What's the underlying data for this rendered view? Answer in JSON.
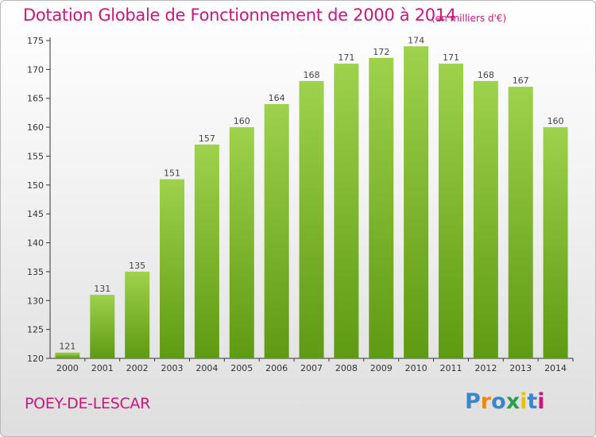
{
  "header": {
    "title": "Dotation Globale de Fonctionnement de 2000 à 2014",
    "unit": "(en milliers d'€)"
  },
  "footer": {
    "commune": "POEY-DE-LESCAR",
    "brand": "Proxiti"
  },
  "colors": {
    "title": "#c8167a",
    "bar_top": "#9ed24a",
    "bar_bottom": "#5e9a12",
    "axis": "#333333"
  },
  "chart_data": {
    "type": "bar",
    "categories": [
      "2000",
      "2001",
      "2002",
      "2003",
      "2004",
      "2005",
      "2006",
      "2007",
      "2008",
      "2009",
      "2010",
      "2011",
      "2012",
      "2013",
      "2014"
    ],
    "values": [
      121,
      131,
      135,
      151,
      157,
      160,
      164,
      168,
      171,
      172,
      174,
      171,
      168,
      167,
      160
    ],
    "ylim": [
      120,
      175
    ],
    "yticks": [
      120,
      125,
      130,
      135,
      140,
      145,
      150,
      155,
      160,
      165,
      170,
      175
    ],
    "title": "Dotation Globale de Fonctionnement de 2000 à 2014",
    "xlabel": "",
    "ylabel": "",
    "grid": false,
    "data_labels": true
  }
}
